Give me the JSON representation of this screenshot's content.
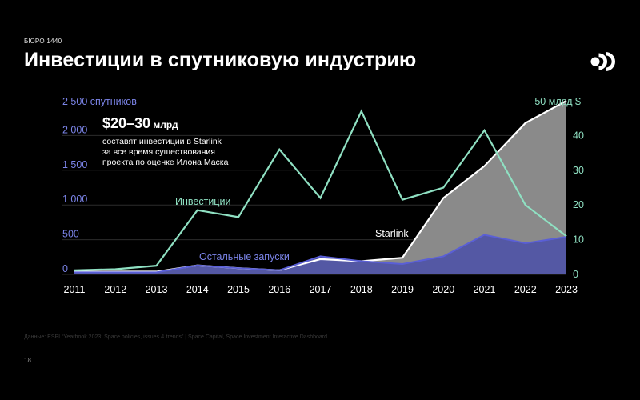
{
  "brand": "БЮРО 1440",
  "title": "Инвестиции в спутниковую индустрию",
  "source": "Данные: ESPI “Yearbook 2023: Space policies, issues & trends” | Space Capital, Space Investment Interactive Dashboard",
  "page_number": "18",
  "icons": {
    "logo": "bureau-1440-logo-icon"
  },
  "colors": {
    "background": "#000000",
    "investment_line": "#8fe0c2",
    "left_axis": "#7b84e8",
    "right_axis": "#8fe0c2",
    "other_launches": "#5a5fd6",
    "starlink_area": "#8a8a8a",
    "starlink_line": "#ffffff"
  },
  "chart_data": {
    "type": "area",
    "x": [
      2011,
      2012,
      2013,
      2014,
      2015,
      2016,
      2017,
      2018,
      2019,
      2020,
      2021,
      2022,
      2023
    ],
    "left_axis": {
      "label": "2 500 спутников",
      "ticks": [
        0,
        500,
        1000,
        1500,
        2000
      ],
      "tick_labels": [
        "0",
        "500",
        "1 000",
        "1 500",
        "2 000"
      ],
      "ylim": [
        0,
        2500
      ]
    },
    "right_axis": {
      "label": "50 млрд $",
      "ticks": [
        0,
        10,
        20,
        30,
        40
      ],
      "tick_labels": [
        "0",
        "10",
        "20",
        "30",
        "40"
      ],
      "ylim": [
        0,
        50
      ]
    },
    "series": [
      {
        "name": "Starlink",
        "axis": "left",
        "kind": "area",
        "values": [
          40,
          40,
          40,
          130,
          90,
          60,
          220,
          190,
          240,
          1100,
          1560,
          2180,
          2500
        ]
      },
      {
        "name": "Остальные запуски",
        "axis": "left",
        "kind": "area",
        "values": [
          30,
          30,
          30,
          130,
          90,
          60,
          260,
          190,
          150,
          260,
          570,
          450,
          540
        ]
      },
      {
        "name": "Инвестиции",
        "axis": "right",
        "kind": "line",
        "values": [
          1.2,
          1.5,
          2.5,
          18.5,
          16.5,
          36,
          22,
          47,
          21.5,
          25,
          41.5,
          20,
          11
        ]
      }
    ],
    "annotation": {
      "headline": "$20–30",
      "headline_unit": "млрд",
      "lines": [
        "составят инвестиции в Starlink",
        "за все время существования",
        "проекта по оценке Илона Маска"
      ]
    },
    "grid": "horizontal"
  }
}
